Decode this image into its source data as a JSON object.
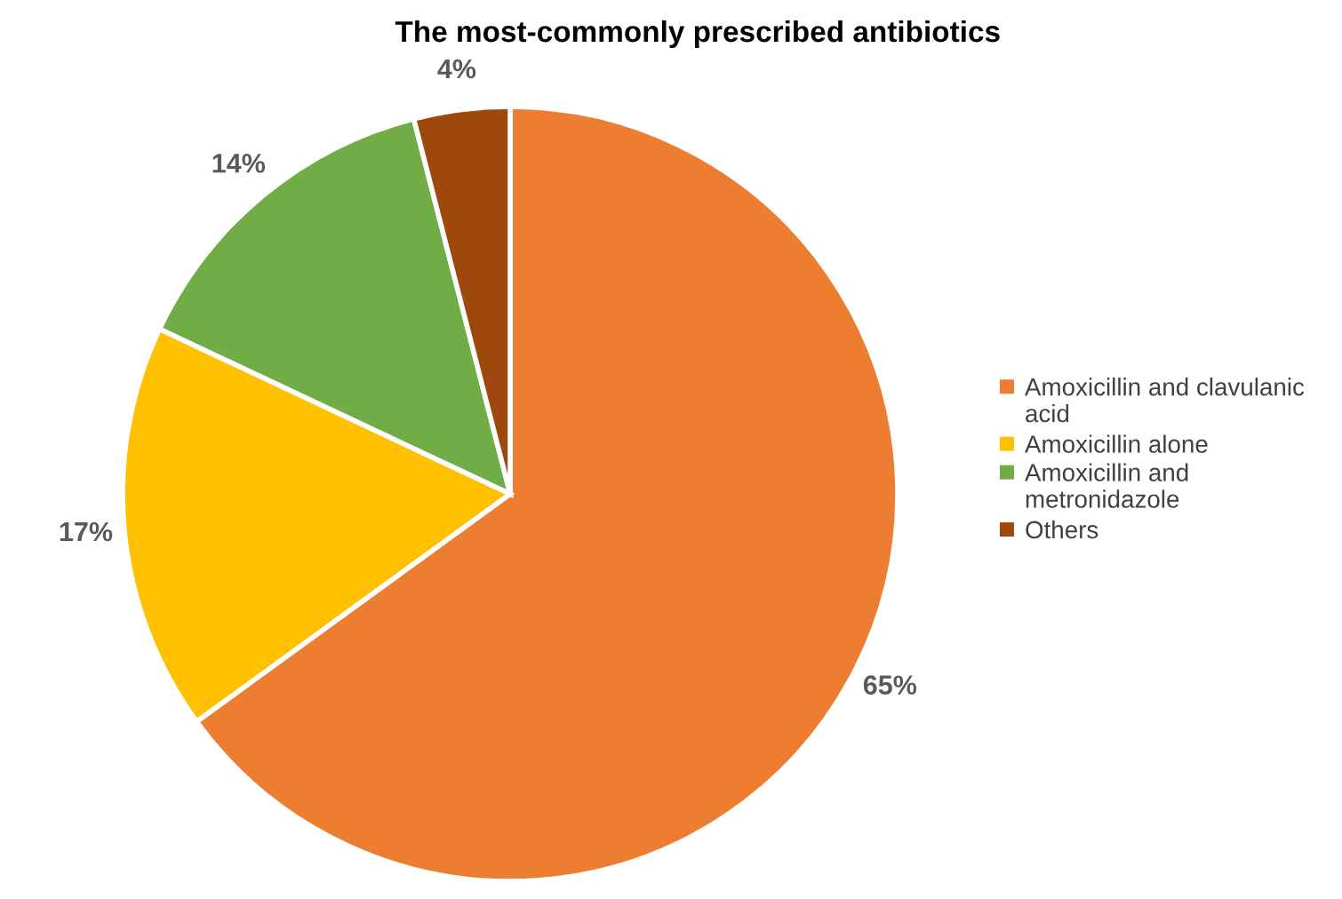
{
  "chart_data": {
    "type": "pie",
    "title": "The most-commonly prescribed antibiotics",
    "categories": [
      "Amoxicillin and clavulanic acid",
      "Amoxicillin alone",
      "Amoxicillin and metronidazole",
      "Others"
    ],
    "values": [
      65,
      17,
      14,
      4
    ],
    "value_labels": [
      "65%",
      "17%",
      "14%",
      "4%"
    ],
    "colors": [
      "#ed7d31",
      "#ffc000",
      "#70ad47",
      "#9e480e"
    ],
    "legend": "right"
  }
}
